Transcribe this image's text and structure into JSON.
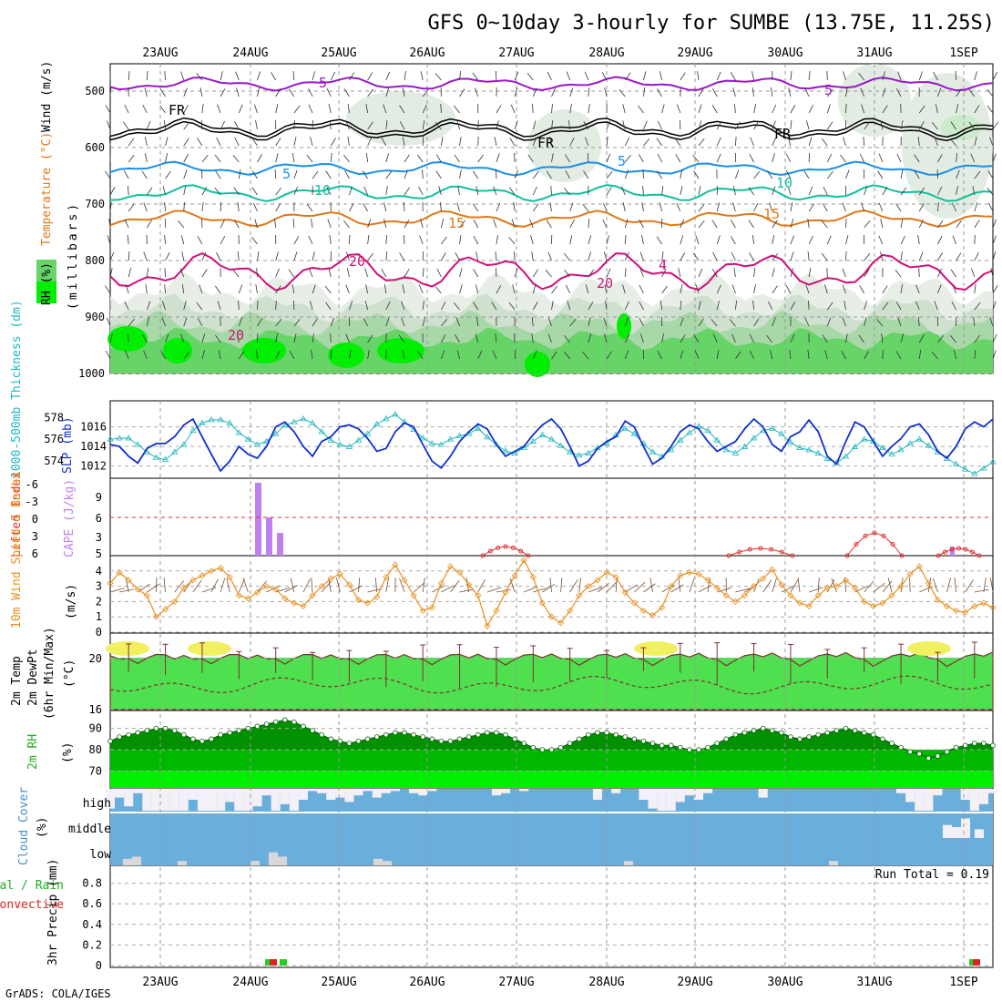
{
  "title": "GFS 0~10day 3-hourly for SUMBE (13.75E, 11.25S)",
  "footer": "GrADS: COLA/IGES",
  "date_labels": [
    "23AUG",
    "24AUG",
    "25AUG",
    "26AUG",
    "27AUG",
    "28AUG",
    "29AUG",
    "30AUG",
    "31AUG",
    "1SEP"
  ],
  "colors": {
    "rh_green": "#66d466",
    "rh_bright": "#00ee00",
    "temp_purple": "#9a18c8",
    "temp_blue": "#1a90e8",
    "temp_teal": "#10c0a0",
    "temp_orange": "#e07818",
    "temp_magenta": "#d0107a",
    "slp_blue": "#1030d0",
    "thick_cyan": "#20b8c0",
    "cape_purple": "#c080f0",
    "li_red": "#e03030",
    "wind_orange": "#e89020",
    "barb_brown": "#7a5030",
    "temp_dark": "#803030",
    "yellow": "#f0f060",
    "cloud_blue": "#6aaedc",
    "cloud_white": "#f4f0f8",
    "cloud_grey": "#d8d8d8",
    "precip_green": "#20d020",
    "precip_red": "#e02020"
  },
  "panels": {
    "upper": {
      "ylabel_rh": "RH (%)",
      "ylabel_temp": "Temperature (°C)",
      "ylabel_wind": "Wind (m/s)",
      "ylabel_mb": "(millibars)",
      "pressure_ticks": [
        "500",
        "600",
        "700",
        "800",
        "900",
        "1000"
      ],
      "contour_labels": [
        "5",
        "5",
        "FR",
        "FR",
        "FR",
        "5",
        "5",
        "10",
        "10",
        "15",
        "15",
        "20",
        "20",
        "20",
        "4"
      ]
    },
    "slp": {
      "ylabel_thick": "1000-500mb Thickness (dm)",
      "ylabel_slp": "SLP (mb)",
      "thick_ticks": [
        "578",
        "576",
        "574"
      ],
      "slp_ticks": [
        "1016",
        "1014",
        "1012"
      ]
    },
    "cape": {
      "ylabel_li": "Lifted Index",
      "ylabel_cape": "CAPE (J/kg)",
      "li_ticks": [
        "-6",
        "-3",
        "0",
        "3",
        "6"
      ],
      "cape_ticks": [
        "9",
        "6",
        "3",
        "5"
      ]
    },
    "wind10": {
      "ylabel": "10m Wind Speed & Barbs",
      "unit": "(m/s)",
      "ticks": [
        "4",
        "3",
        "2",
        "1",
        "0"
      ]
    },
    "temp2m": {
      "ylabel1": "2m Temp",
      "ylabel2": "2m DewPt",
      "ylabel3": "(6hr Min/Max)",
      "unit": "(°C)",
      "ticks": [
        "20",
        "16"
      ]
    },
    "rh2m": {
      "ylabel": "2m RH",
      "unit": "(%)",
      "ticks": [
        "90",
        "80",
        "70"
      ]
    },
    "cloud": {
      "ylabel": "Cloud Cover",
      "unit": "(%)",
      "layers": [
        "high",
        "middle",
        "low"
      ]
    },
    "precip": {
      "ylabel_a": "Total / Rain",
      "ylabel_b": "Convective",
      "ylabel_c": "3hr Precip (mm)",
      "ticks": [
        "0.8",
        "0.6",
        "0.4",
        "0.2",
        "0"
      ],
      "run_total": "Run Total = 0.19"
    }
  },
  "chart_data": [
    {
      "type": "line",
      "title": "SLP (mb) and 1000-500mb Thickness (dm)",
      "series": [
        {
          "name": "SLP (mb)",
          "values": [
            1014.2,
            1014.0,
            1013.0,
            1012.3,
            1013.8,
            1014.3,
            1014.3,
            1015.0,
            1016.2,
            1016.8,
            1015.0,
            1013.2,
            1011.5,
            1012.5,
            1014.0,
            1013.2,
            1012.8,
            1014.0,
            1016.0,
            1016.5,
            1015.5,
            1014.0,
            1013.0,
            1014.5,
            1015.0,
            1016.0,
            1016.2,
            1015.8,
            1014.8,
            1013.5,
            1013.8,
            1015.5,
            1016.4,
            1016.0,
            1014.2,
            1012.5,
            1011.8,
            1013.0,
            1014.5,
            1015.5,
            1016.3,
            1015.8,
            1014.2,
            1013.0,
            1013.5,
            1014.0,
            1015.2,
            1016.2,
            1016.8,
            1015.8,
            1014.0,
            1012.0,
            1012.5,
            1013.8,
            1014.5,
            1015.0,
            1016.6,
            1016.0,
            1014.0,
            1012.2,
            1012.8,
            1014.0,
            1015.5,
            1016.2,
            1015.8,
            1014.5,
            1013.5,
            1014.0,
            1014.5,
            1015.8,
            1016.8,
            1016.0,
            1014.2,
            1013.5,
            1015.0,
            1015.5,
            1016.7,
            1015.5,
            1013.0,
            1012.2,
            1014.5,
            1016.5,
            1016.0,
            1014.5,
            1013.0,
            1014.0,
            1014.8,
            1016.0,
            1016.3,
            1015.2,
            1013.5,
            1012.8,
            1014.0,
            1015.8,
            1016.5,
            1016.0,
            1016.8
          ]
        },
        {
          "name": "1000-500mb Thickness (dm)",
          "values": [
            576.0,
            576.1,
            576.1,
            575.5,
            574.8,
            574.3,
            574.1,
            574.8,
            575.5,
            576.8,
            577.5,
            577.8,
            577.8,
            577.5,
            576.6,
            576.0,
            575.5,
            575.8,
            576.5,
            577.3,
            577.6,
            577.9,
            577.5,
            576.7,
            575.9,
            575.5,
            575.3,
            575.9,
            576.5,
            577.4,
            577.9,
            578.3,
            577.6,
            576.9,
            576.1,
            575.6,
            575.5,
            576.0,
            576.3,
            576.5,
            577.0,
            576.2,
            575.5,
            574.9,
            574.7,
            575.2,
            575.8,
            576.4,
            576.0,
            575.4,
            574.8,
            574.5,
            574.7,
            575.2,
            575.6,
            576.4,
            577.0,
            576.5,
            575.6,
            574.8,
            574.4,
            575.0,
            575.9,
            576.6,
            577.2,
            576.8,
            575.9,
            575.0,
            574.7,
            575.3,
            576.1,
            576.8,
            577.0,
            576.5,
            575.7,
            575.2,
            575.0,
            574.7,
            574.2,
            573.8,
            574.4,
            575.3,
            576.0,
            575.8,
            575.2,
            574.6,
            575.0,
            575.6,
            576.0,
            575.4,
            574.8,
            574.2,
            573.7,
            573.2,
            572.8,
            573.3,
            573.9
          ]
        }
      ]
    },
    {
      "type": "line",
      "title": "10m Wind Speed & Barbs",
      "ylim": [
        0,
        4.5
      ],
      "series": [
        {
          "name": "10m Wind Speed",
          "values": [
            3.2,
            3.9,
            3.4,
            2.8,
            2.4,
            1.0,
            1.5,
            2.0,
            2.9,
            3.4,
            3.7,
            4.0,
            4.2,
            3.6,
            2.4,
            2.2,
            2.6,
            3.0,
            2.8,
            2.2,
            1.9,
            1.7,
            2.4,
            3.0,
            3.5,
            3.8,
            3.1,
            2.1,
            1.9,
            2.3,
            3.6,
            4.4,
            3.4,
            2.4,
            1.4,
            1.6,
            3.2,
            4.3,
            3.9,
            3.1,
            2.4,
            0.4,
            1.4,
            2.6,
            3.7,
            4.7,
            3.6,
            1.9,
            1.0,
            0.6,
            1.4,
            2.4,
            3.0,
            3.4,
            3.9,
            3.6,
            2.6,
            1.9,
            1.4,
            1.1,
            1.6,
            3.0,
            3.7,
            3.9,
            3.8,
            3.4,
            2.9,
            2.4,
            2.0,
            2.4,
            3.0,
            3.5,
            4.1,
            3.1,
            2.4,
            1.9,
            1.7,
            2.4,
            2.9,
            3.0,
            3.4,
            2.9,
            2.0,
            1.7,
            1.9,
            2.4,
            3.0,
            3.8,
            4.3,
            3.2,
            2.1,
            1.7,
            1.4,
            1.3,
            1.7,
            1.9,
            1.6
          ]
        }
      ]
    },
    {
      "type": "area",
      "title": "2m RH",
      "ylim": [
        62,
        95
      ],
      "series": [
        {
          "name": "2m RH (%)",
          "values": [
            84,
            86,
            87,
            88,
            89,
            90,
            90,
            89,
            87,
            85,
            84,
            85,
            87,
            88,
            89,
            90,
            91,
            92,
            93,
            94,
            93,
            91,
            89,
            87,
            85,
            84,
            83,
            84,
            85,
            86,
            87,
            88,
            88,
            87,
            86,
            85,
            84,
            84,
            85,
            86,
            87,
            88,
            88,
            87,
            85,
            83,
            81,
            80,
            80,
            81,
            83,
            85,
            87,
            88,
            88,
            87,
            86,
            85,
            84,
            83,
            82,
            82,
            81,
            80,
            80,
            81,
            83,
            85,
            87,
            88,
            89,
            90,
            89,
            88,
            86,
            85,
            86,
            87,
            88,
            89,
            90,
            89,
            88,
            87,
            85,
            83,
            81,
            79,
            78,
            76,
            77,
            79,
            81,
            82,
            83,
            83,
            82
          ]
        }
      ]
    }
  ]
}
